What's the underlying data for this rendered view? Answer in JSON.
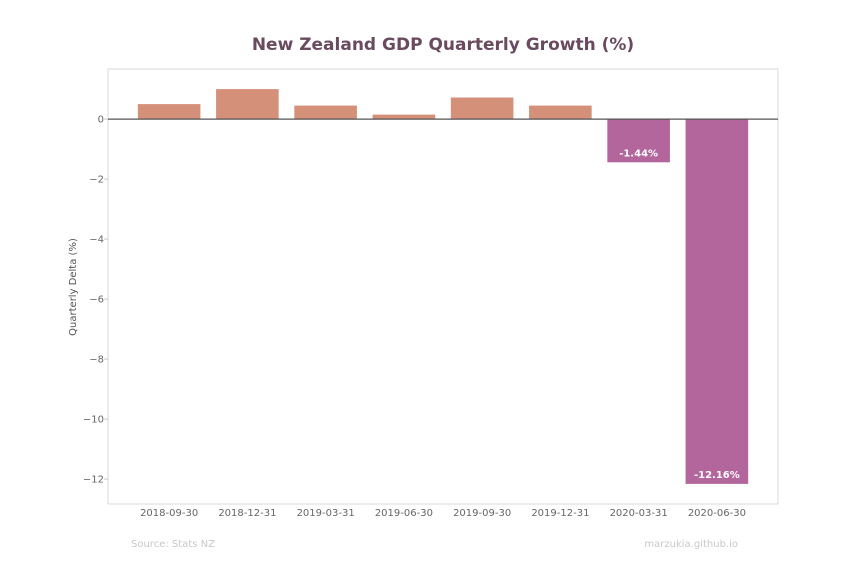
{
  "chart_data": {
    "type": "bar",
    "title": "New Zealand GDP Quarterly Growth (%)",
    "xlabel": "",
    "ylabel": "Quarterly Delta (%)",
    "categories": [
      "2018-09-30",
      "2018-12-31",
      "2019-03-31",
      "2019-06-30",
      "2019-09-30",
      "2019-12-31",
      "2020-03-31",
      "2020-06-30"
    ],
    "values": [
      0.5,
      1.0,
      0.45,
      0.15,
      0.72,
      0.45,
      -1.44,
      -12.16
    ],
    "data_labels": [
      "",
      "",
      "",
      "",
      "",
      "",
      "-1.44%",
      "-12.16%"
    ],
    "ylim": [
      -12.83,
      1.67
    ],
    "yticks": [
      0,
      -2,
      -4,
      -6,
      -8,
      -10,
      -12
    ],
    "ytick_labels": [
      "0",
      "−2",
      "−4",
      "−6",
      "−8",
      "−10",
      "−12"
    ],
    "grid": false,
    "legend": "none",
    "colors": {
      "positive": "#d5907a",
      "negative": "#b3669c",
      "title": "#6a4a5e",
      "zero_line": "#555555"
    }
  },
  "footer": {
    "source": "Source: Stats NZ",
    "credit": "marzukia.github.io"
  }
}
